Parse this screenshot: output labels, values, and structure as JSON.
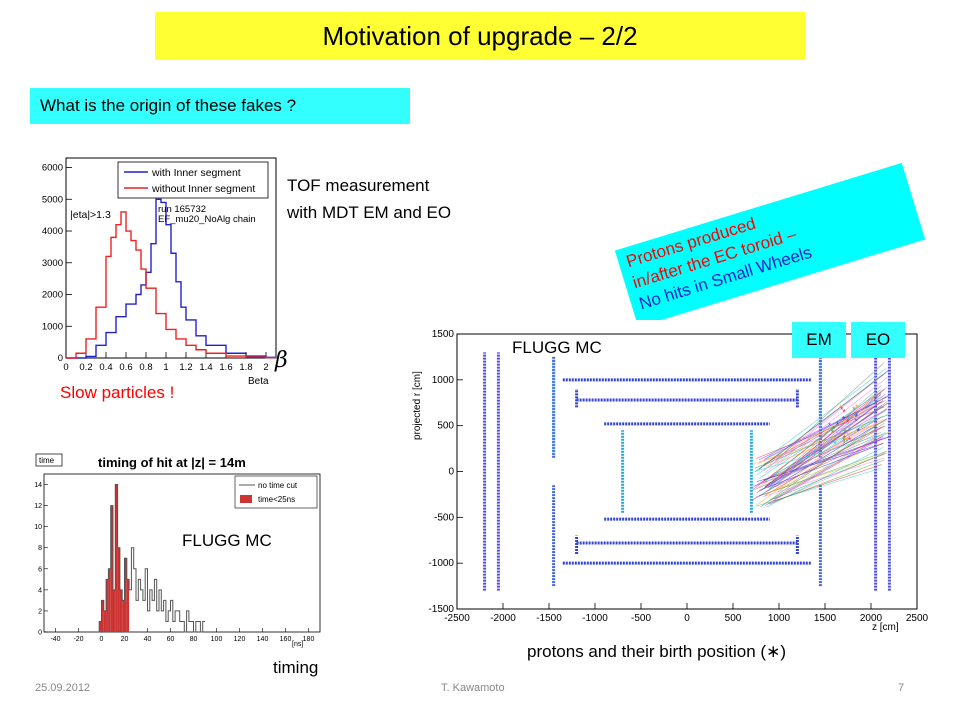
{
  "slide": {
    "title": "Motivation of upgrade  – 2/2",
    "question": "What is the origin of these fakes ?",
    "tof_line1": "TOF measurement",
    "tof_line2": "with MDT EM and EO",
    "beta_symbol": "β",
    "slow_particles": "Slow particles !",
    "protons_line1": "Protons produced",
    "protons_line2": "in/after the EC toroid –",
    "protons_line3": "No hits in Small Wheels",
    "flugg_top": "FLUGG MC",
    "flugg_bottom": "FLUGG MC",
    "em_tag": "EM",
    "eo_tag": "EO",
    "timing_label": "timing",
    "birth_caption": "protons and their birth position (∗)",
    "footer_date": "25.09.2012",
    "footer_author": "T. Kawamoto",
    "footer_page": "7"
  },
  "colors": {
    "title_bg": "#ffff33",
    "question_bg": "#33ffff",
    "protons_bg": "#00ffff",
    "with_inner": "#2222cc",
    "without_inner": "#ee2222",
    "time_cut_fill": "#cc3333"
  },
  "charts": {
    "beta_histogram": {
      "type": "line",
      "legend": [
        "with Inner segment",
        "without Inner segment"
      ],
      "legend_placement": "top-right",
      "annotations": [
        "|eta|>1.3",
        "run 165732",
        "EF_mu20_NoAlg chain"
      ],
      "xlabel": "Beta",
      "x_ticks": [
        "0",
        "0.2",
        "0.4",
        "0.6",
        "0.8",
        "1",
        "1.2",
        "1.4",
        "1.6",
        "1.8",
        "2"
      ],
      "y_ticks": [
        "0",
        "1000",
        "2000",
        "3000",
        "4000",
        "5000",
        "6000"
      ],
      "xlim": [
        0,
        2.1
      ],
      "ylim": [
        0,
        6300
      ],
      "series": [
        {
          "name": "with Inner segment",
          "x": [
            0.0,
            0.2,
            0.3,
            0.4,
            0.5,
            0.6,
            0.7,
            0.75,
            0.8,
            0.85,
            0.9,
            0.95,
            1.0,
            1.05,
            1.1,
            1.15,
            1.2,
            1.3,
            1.4,
            1.6,
            1.8,
            2.0
          ],
          "values": [
            0,
            50,
            400,
            800,
            1300,
            1700,
            2000,
            2300,
            2700,
            3600,
            5000,
            4900,
            4200,
            3300,
            2400,
            1600,
            1200,
            700,
            400,
            150,
            60,
            20
          ]
        },
        {
          "name": "without Inner segment",
          "x": [
            0.0,
            0.1,
            0.2,
            0.3,
            0.4,
            0.45,
            0.5,
            0.55,
            0.6,
            0.65,
            0.7,
            0.75,
            0.8,
            0.9,
            1.0,
            1.1,
            1.2,
            1.3,
            1.4,
            1.6,
            1.8,
            2.0
          ],
          "values": [
            0,
            150,
            600,
            1600,
            3200,
            3800,
            4200,
            4600,
            4000,
            3700,
            3400,
            2800,
            2200,
            1400,
            900,
            600,
            400,
            260,
            150,
            60,
            30,
            10
          ]
        }
      ]
    },
    "timing_histogram": {
      "type": "bar",
      "title": "timing of hit at |z| = 14m",
      "stat_box": "time",
      "legend": [
        "no time cut",
        "time<25ns"
      ],
      "x_unit": "[ns]",
      "x_ticks": [
        "-40",
        "-20",
        "0",
        "20",
        "40",
        "60",
        "80",
        "100",
        "120",
        "140",
        "160",
        "180"
      ],
      "y_ticks": [
        "0",
        "2",
        "4",
        "6",
        "8",
        "10",
        "12",
        "14"
      ],
      "xlim": [
        -50,
        190
      ],
      "ylim": [
        0,
        15
      ],
      "bin_width": 2,
      "bin_start": -2,
      "no_cut": [
        1,
        3,
        2,
        5,
        6,
        12,
        4,
        14,
        8,
        4,
        3,
        7,
        5,
        4,
        8,
        6,
        3,
        5,
        4,
        3,
        6,
        2,
        4,
        3,
        5,
        2,
        4,
        2,
        3,
        1,
        2,
        3,
        1,
        2,
        2,
        1,
        1,
        0,
        2,
        1,
        1,
        0,
        1,
        1,
        0,
        1
      ],
      "cut": [
        1,
        3,
        2,
        5,
        6,
        12,
        4,
        14,
        8,
        4,
        3,
        7,
        5,
        0,
        0,
        0,
        0,
        0,
        0,
        0,
        0,
        0,
        0,
        0,
        0,
        0,
        0,
        0,
        0,
        0,
        0,
        0,
        0,
        0,
        0,
        0,
        0,
        0,
        0,
        0,
        0,
        0,
        0,
        0,
        0,
        0
      ]
    },
    "rz_plot": {
      "type": "scatter",
      "xlabel": "z [cm]",
      "ylabel": "projected r [cm]",
      "x_ticks": [
        "-2500",
        "-2000",
        "-1500",
        "-1000",
        "-500",
        "0",
        "500",
        "1000",
        "1500",
        "2000",
        "2500"
      ],
      "y_ticks": [
        "-1500",
        "-1000",
        "-500",
        "0",
        "500",
        "1000",
        "1500"
      ],
      "xlim": [
        -2500,
        2500
      ],
      "ylim": [
        -1500,
        1500
      ]
    }
  }
}
